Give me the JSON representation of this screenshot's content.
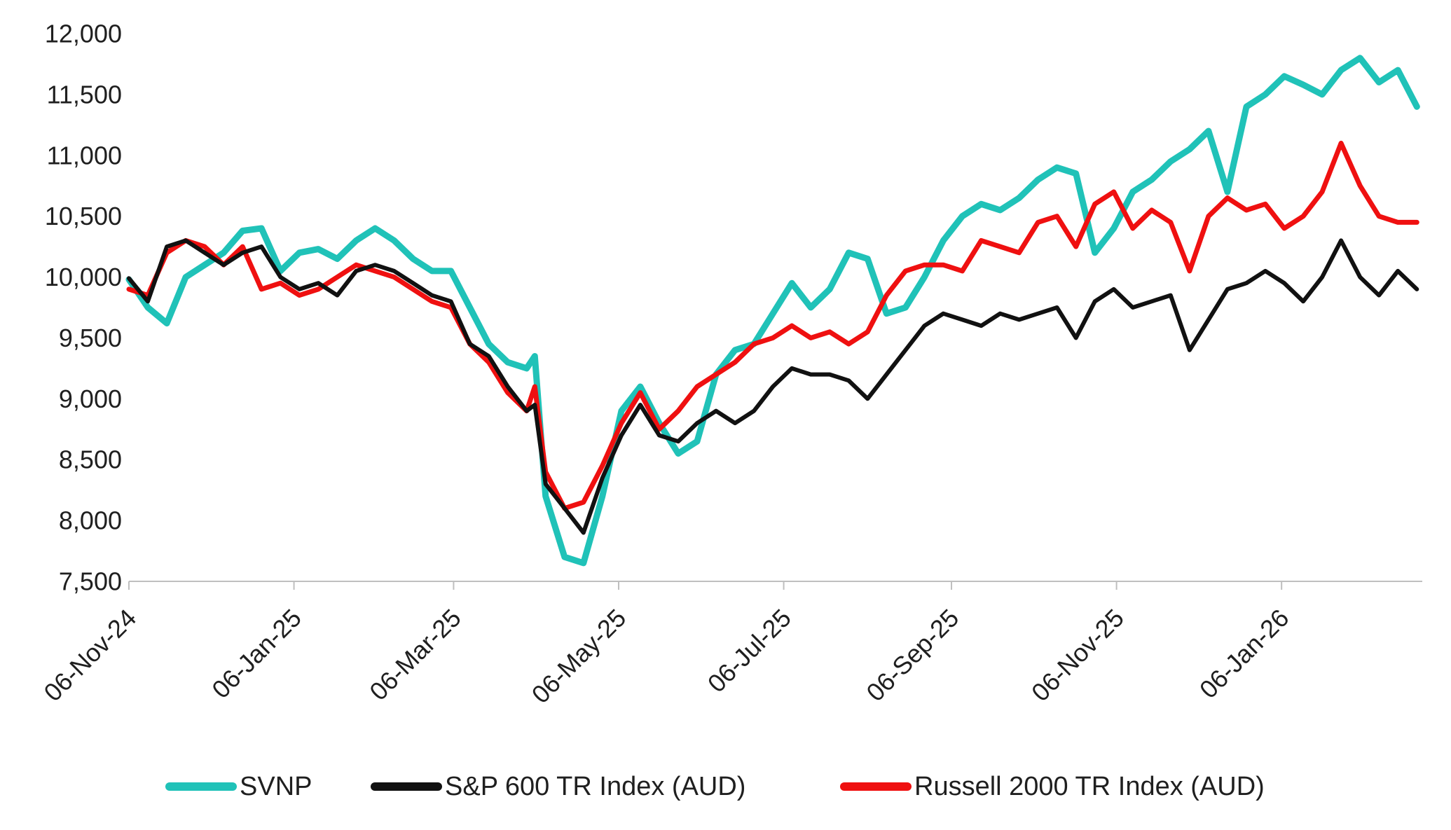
{
  "chart_data": {
    "type": "line",
    "title": "",
    "xlabel": "",
    "ylabel": "",
    "ylim": [
      7500,
      12000
    ],
    "yticks": [
      7500,
      8000,
      8500,
      9000,
      9500,
      10000,
      10500,
      11000,
      11500,
      12000
    ],
    "ytick_labels": [
      "7,500",
      "8,000",
      "8,500",
      "9,000",
      "9,500",
      "10,000",
      "10,500",
      "11,000",
      "11,500",
      "12,000"
    ],
    "xlim": [
      "2024-11-06",
      "2026-02-27"
    ],
    "xticks": [
      "2024-11-06",
      "2025-01-06",
      "2025-03-06",
      "2025-05-06",
      "2025-07-06",
      "2025-09-06",
      "2025-11-06",
      "2026-01-06"
    ],
    "xtick_labels": [
      "06-Nov-24",
      "06-Jan-25",
      "06-Mar-25",
      "06-May-25",
      "06-Jul-25",
      "06-Sep-25",
      "06-Nov-25",
      "06-Jan-26"
    ],
    "grid": false,
    "legend_position": "bottom",
    "x": [
      "2024-11-06",
      "2024-11-13",
      "2024-11-20",
      "2024-11-27",
      "2024-12-04",
      "2024-12-11",
      "2024-12-18",
      "2024-12-25",
      "2025-01-01",
      "2025-01-08",
      "2025-01-15",
      "2025-01-22",
      "2025-01-29",
      "2025-02-05",
      "2025-02-12",
      "2025-02-19",
      "2025-02-26",
      "2025-03-05",
      "2025-03-12",
      "2025-03-19",
      "2025-03-26",
      "2025-04-02",
      "2025-04-05",
      "2025-04-09",
      "2025-04-16",
      "2025-04-23",
      "2025-04-30",
      "2025-05-07",
      "2025-05-14",
      "2025-05-21",
      "2025-05-28",
      "2025-06-04",
      "2025-06-11",
      "2025-06-18",
      "2025-06-25",
      "2025-07-02",
      "2025-07-09",
      "2025-07-16",
      "2025-07-23",
      "2025-07-30",
      "2025-08-06",
      "2025-08-13",
      "2025-08-20",
      "2025-08-27",
      "2025-09-03",
      "2025-09-10",
      "2025-09-17",
      "2025-09-24",
      "2025-10-01",
      "2025-10-08",
      "2025-10-15",
      "2025-10-22",
      "2025-10-29",
      "2025-11-05",
      "2025-11-12",
      "2025-11-19",
      "2025-11-26",
      "2025-12-03",
      "2025-12-10",
      "2025-12-17",
      "2025-12-24",
      "2025-12-31",
      "2026-01-07",
      "2026-01-14",
      "2026-01-21",
      "2026-01-28",
      "2026-02-04",
      "2026-02-11",
      "2026-02-18",
      "2026-02-25"
    ],
    "series": [
      {
        "name": "SVNP",
        "color": "#20c2b8",
        "values": [
          9980,
          9750,
          9620,
          10000,
          10100,
          10200,
          10380,
          10400,
          10050,
          10200,
          10230,
          10150,
          10300,
          10400,
          10300,
          10150,
          10050,
          10050,
          9750,
          9450,
          9300,
          9250,
          9350,
          8200,
          7700,
          7650,
          8200,
          8900,
          9100,
          8800,
          8550,
          8650,
          9200,
          9400,
          9450,
          9700,
          9950,
          9750,
          9900,
          10200,
          10150,
          9700,
          9750,
          10000,
          10300,
          10500,
          10600,
          10550,
          10650,
          10800,
          10900,
          10850,
          10200,
          10400,
          10700,
          10800,
          10950,
          11050,
          11200,
          10700,
          11400,
          11500,
          11650,
          11580,
          11500,
          11700,
          11800,
          11600,
          11700,
          11400
        ]
      },
      {
        "name": "S&P 600 TR Index (AUD)",
        "color": "#111111",
        "values": [
          9990,
          9800,
          10250,
          10300,
          10200,
          10100,
          10200,
          10250,
          10000,
          9900,
          9950,
          9850,
          10050,
          10100,
          10050,
          9950,
          9850,
          9800,
          9450,
          9350,
          9100,
          8900,
          8950,
          8300,
          8100,
          7900,
          8350,
          8700,
          8950,
          8700,
          8650,
          8800,
          8900,
          8800,
          8900,
          9100,
          9250,
          9200,
          9200,
          9150,
          9000,
          9200,
          9400,
          9600,
          9700,
          9650,
          9600,
          9700,
          9650,
          9700,
          9750,
          9500,
          9800,
          9900,
          9750,
          9800,
          9850,
          9400,
          9650,
          9900,
          9950,
          10050,
          9950,
          9800,
          10000,
          10300,
          10000,
          9850,
          10050,
          9900
        ]
      },
      {
        "name": "Russell 2000 TR Index (AUD)",
        "color": "#ef1010",
        "values": [
          9900,
          9850,
          10200,
          10300,
          10250,
          10100,
          10250,
          9900,
          9950,
          9850,
          9900,
          10000,
          10100,
          10050,
          10000,
          9900,
          9800,
          9750,
          9450,
          9300,
          9050,
          8900,
          9100,
          8400,
          8100,
          8150,
          8450,
          8800,
          9050,
          8750,
          8900,
          9100,
          9200,
          9300,
          9450,
          9500,
          9600,
          9500,
          9550,
          9450,
          9550,
          9850,
          10050,
          10100,
          10100,
          10050,
          10300,
          10250,
          10200,
          10450,
          10500,
          10250,
          10600,
          10700,
          10400,
          10550,
          10450,
          10050,
          10500,
          10650,
          10550,
          10600,
          10400,
          10500,
          10700,
          11100,
          10750,
          10500,
          10450,
          10450
        ]
      }
    ]
  }
}
